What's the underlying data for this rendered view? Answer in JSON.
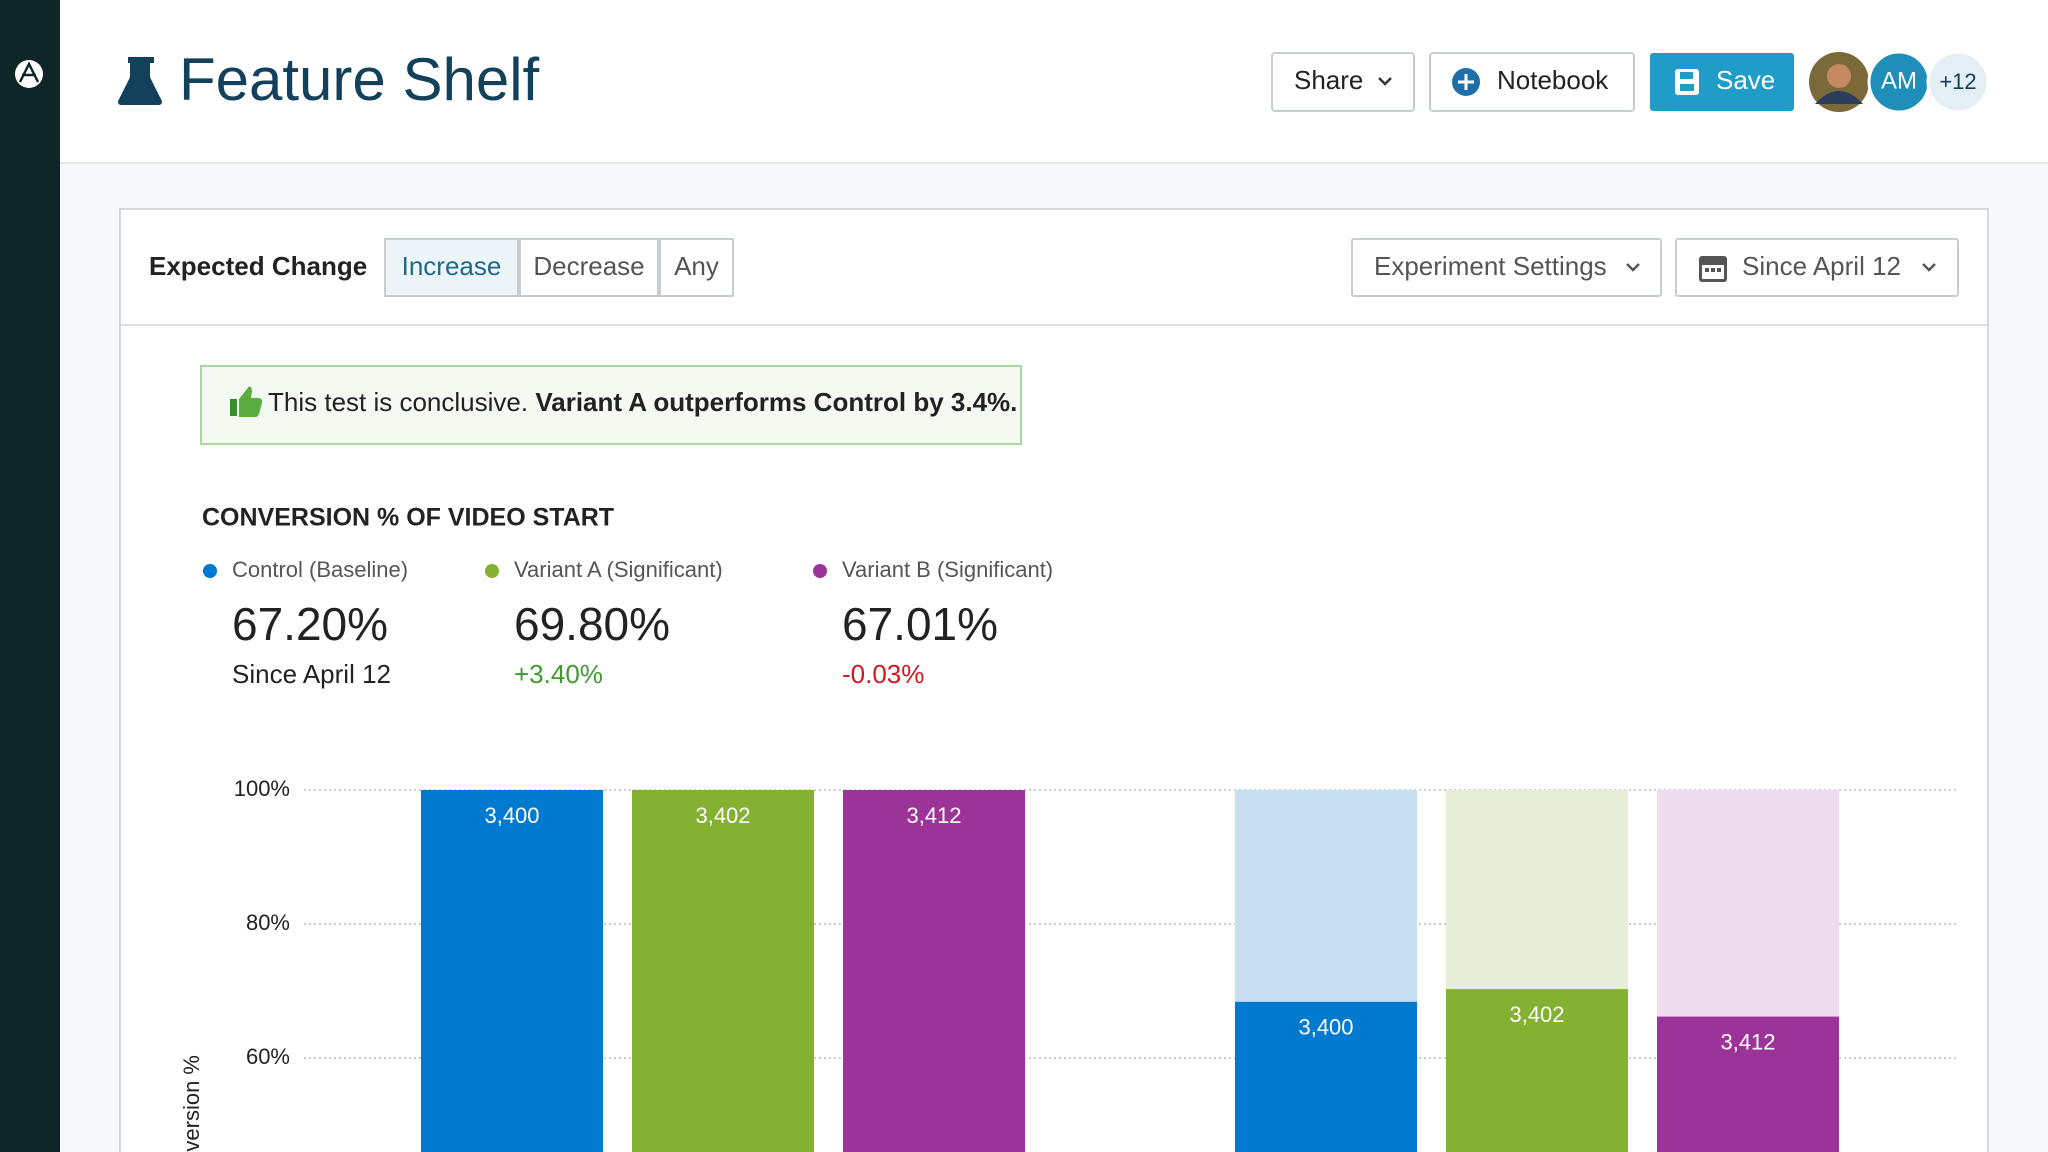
{
  "header": {
    "title": "Feature Shelf",
    "share": "Share",
    "notebook": "Notebook",
    "save": "Save",
    "avatar_initials": "AM",
    "more_members": "+12"
  },
  "toolbar": {
    "label": "Expected Change",
    "options": [
      "Increase",
      "Decrease",
      "Any"
    ],
    "selected_option": 0,
    "settings": "Experiment Settings",
    "date_range": "Since April 12"
  },
  "banner": {
    "text": "This test is conclusive.",
    "emphasis": "Variant A outperforms Control by 3.4%."
  },
  "chart_data": {
    "type": "bar",
    "title": "CONVERSION % OF VIDEO START",
    "y_label": "Conversion %",
    "ylim": [
      46,
      100
    ],
    "yticks": [
      {
        "value": 60,
        "label": "60%"
      },
      {
        "value": 80,
        "label": "80%"
      },
      {
        "value": 100,
        "label": "100%"
      }
    ],
    "grid": true,
    "series": [
      {
        "name": "Control (Baseline)",
        "color": "#0079d0",
        "light_color": "#c6dff3",
        "summary": "67.20%",
        "subtext": "Since April 12",
        "subtext_color": "#222222",
        "values": [
          100,
          68.4
        ],
        "counts": [
          "3,400",
          "3,400"
        ]
      },
      {
        "name": "Variant A (Significant)",
        "color": "#84b131",
        "light_color": "#e6eed8",
        "summary": "69.80%",
        "subtext": "+3.40%",
        "subtext_color": "#3f9a2f",
        "values": [
          100,
          70.3
        ],
        "counts": [
          "3,402",
          "3,402"
        ]
      },
      {
        "name": "Variant B (Significant)",
        "color": "#9c3398",
        "light_color": "#efdcee",
        "summary": "67.01%",
        "subtext": "-0.03%",
        "subtext_color": "#d0191f",
        "values": [
          100,
          66.2
        ],
        "counts": [
          "3,412",
          "3,412"
        ]
      }
    ]
  }
}
